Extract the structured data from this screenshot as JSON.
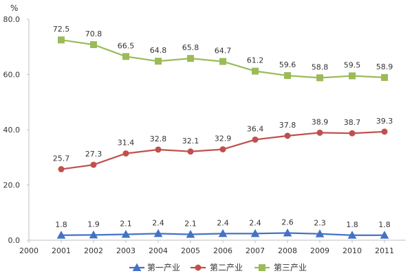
{
  "chart_data": {
    "type": "line",
    "title": "",
    "xlabel": "",
    "ylabel": "",
    "y_unit": "%",
    "x": [
      2001,
      2002,
      2003,
      2004,
      2005,
      2006,
      2007,
      2008,
      2009,
      2010,
      2011
    ],
    "x_ticks": [
      "2000",
      "2001",
      "2002",
      "2003",
      "2004",
      "2005",
      "2006",
      "2007",
      "2008",
      "2009",
      "2010",
      "2011"
    ],
    "y_ticks": [
      "0.0",
      "20.0",
      "40.0",
      "60.0",
      "80.0"
    ],
    "ylim": [
      0,
      80
    ],
    "grid": false,
    "legend_position": "bottom",
    "series": [
      {
        "name": "第一产业",
        "color": "#4472C4",
        "marker": "triangle",
        "values": [
          1.8,
          1.9,
          2.1,
          2.4,
          2.1,
          2.4,
          2.4,
          2.6,
          2.3,
          1.8,
          1.8
        ],
        "labels": [
          "1.8",
          "1.9",
          "2.1",
          "2.4",
          "2.1",
          "2.4",
          "2.4",
          "2.6",
          "2.3",
          "1.8",
          "1.8"
        ]
      },
      {
        "name": "第二产业",
        "color": "#C0504D",
        "marker": "circle",
        "values": [
          25.7,
          27.3,
          31.4,
          32.8,
          32.1,
          32.9,
          36.4,
          37.8,
          38.9,
          38.7,
          39.3
        ],
        "labels": [
          "25.7",
          "27.3",
          "31.4",
          "32.8",
          "32.1",
          "32.9",
          "36.4",
          "37.8",
          "38.9",
          "38.7",
          "39.3"
        ]
      },
      {
        "name": "第三产业",
        "color": "#9BBB59",
        "marker": "square",
        "values": [
          72.5,
          70.8,
          66.5,
          64.8,
          65.8,
          64.7,
          61.2,
          59.6,
          58.8,
          59.5,
          58.9
        ],
        "labels": [
          "72.5",
          "70.8",
          "66.5",
          "64.8",
          "65.8",
          "64.7",
          "61.2",
          "59.6",
          "58.8",
          "59.5",
          "58.9"
        ]
      }
    ]
  }
}
